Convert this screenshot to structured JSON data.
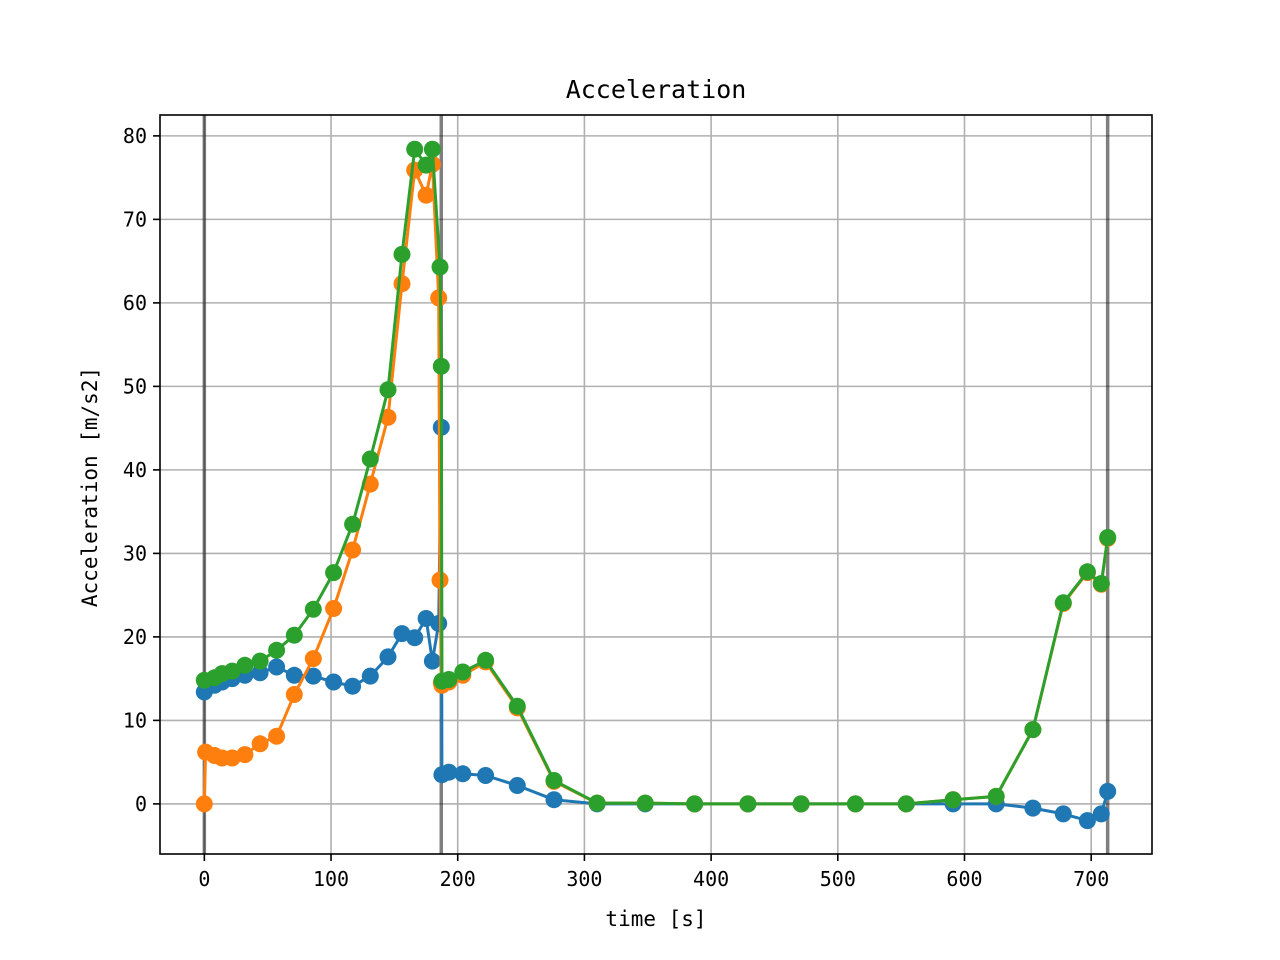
{
  "chart_data": {
    "type": "line",
    "title": "Acceleration",
    "xlabel": "time [s]",
    "ylabel": "Acceleration [m/s2]",
    "xlim": [
      -35,
      748
    ],
    "ylim": [
      -6,
      82.5
    ],
    "xticks": [
      0,
      100,
      200,
      300,
      400,
      500,
      600,
      700
    ],
    "yticks": [
      0,
      10,
      20,
      30,
      40,
      50,
      60,
      70,
      80
    ],
    "xtick_labels": [
      "0",
      "100",
      "200",
      "300",
      "400",
      "500",
      "600",
      "700"
    ],
    "ytick_labels": [
      "0",
      "10",
      "20",
      "30",
      "40",
      "50",
      "60",
      "70",
      "80"
    ],
    "grid": true,
    "vlines": [
      0,
      187,
      713
    ],
    "series": [
      {
        "color": "#1f77b4",
        "x": [
          0,
          8,
          14,
          22,
          32,
          44,
          57,
          71,
          86,
          102,
          117,
          131,
          145,
          156,
          166,
          175,
          180,
          185,
          187,
          187.5,
          193,
          204,
          222,
          247,
          276,
          310,
          348,
          387,
          429,
          471,
          514,
          554,
          591,
          625,
          654,
          678,
          697,
          708,
          713
        ],
        "y": [
          13.4,
          14.2,
          14.6,
          15.0,
          15.4,
          15.7,
          16.4,
          15.4,
          15.3,
          14.6,
          14.1,
          15.3,
          17.6,
          20.4,
          19.9,
          22.2,
          17.1,
          21.6,
          45.1,
          3.5,
          3.8,
          3.6,
          3.4,
          2.2,
          0.5,
          0.0,
          0.0,
          0.0,
          0.0,
          0.0,
          0.0,
          0.0,
          0.0,
          0.0,
          -0.5,
          -1.2,
          -2.0,
          -1.2,
          1.5
        ]
      },
      {
        "color": "#ff7f0e",
        "x": [
          0,
          1,
          8,
          14,
          22,
          32,
          44,
          57,
          71,
          86,
          102,
          117,
          131,
          145,
          156,
          166,
          175,
          180,
          185,
          186,
          187,
          187.5,
          188,
          193,
          204,
          222,
          247,
          276,
          310,
          348,
          387,
          429,
          471,
          514,
          554,
          591,
          625,
          654,
          678,
          697,
          708,
          713
        ],
        "y": [
          0.0,
          6.2,
          5.8,
          5.5,
          5.5,
          5.9,
          7.2,
          8.1,
          13.1,
          17.4,
          23.4,
          30.4,
          38.3,
          46.3,
          62.3,
          75.9,
          72.9,
          76.6,
          60.6,
          26.8,
          14.5,
          14.2,
          14.3,
          14.6,
          15.4,
          17.0,
          11.5,
          2.7,
          0.1,
          0.1,
          0.0,
          0.0,
          0.0,
          0.0,
          0.0,
          0.5,
          0.9,
          8.9,
          24.0,
          27.7,
          26.3,
          31.8
        ]
      },
      {
        "color": "#2ca02c",
        "x": [
          0,
          8,
          14,
          22,
          32,
          44,
          57,
          71,
          86,
          102,
          117,
          131,
          145,
          156,
          166,
          175,
          180,
          186,
          187,
          187.5,
          193,
          204,
          222,
          247,
          276,
          310,
          348,
          387,
          429,
          471,
          514,
          554,
          591,
          625,
          654,
          678,
          697,
          708,
          713
        ],
        "y": [
          14.8,
          15.1,
          15.6,
          15.9,
          16.6,
          17.1,
          18.4,
          20.2,
          23.3,
          27.7,
          33.5,
          41.3,
          49.6,
          65.8,
          78.4,
          76.5,
          78.4,
          64.3,
          52.4,
          14.7,
          14.9,
          15.8,
          17.2,
          11.7,
          2.8,
          0.1,
          0.1,
          0.0,
          0.0,
          0.0,
          0.0,
          0.0,
          0.5,
          0.9,
          8.9,
          24.1,
          27.8,
          26.4,
          31.9
        ]
      }
    ]
  }
}
